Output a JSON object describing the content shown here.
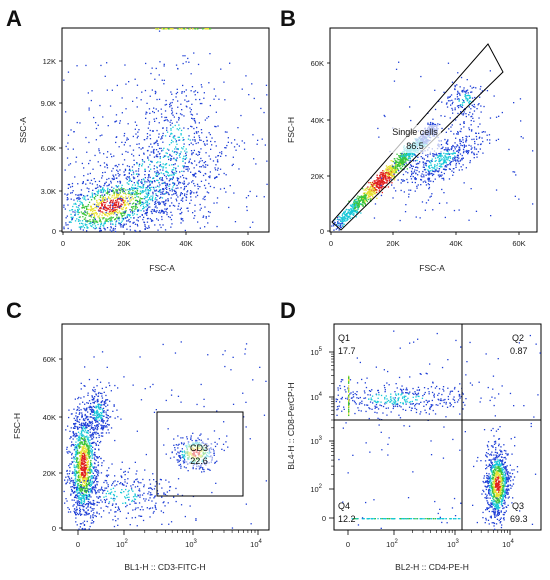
{
  "panels": [
    {
      "id": "A",
      "xlabel": "FSC-A",
      "ylabel": "SSC-A",
      "xticks": [
        "0",
        "20K",
        "40K",
        "60K"
      ],
      "yticks": [
        "0",
        "3.0K",
        "6.0K",
        "9.0K",
        "12K"
      ]
    },
    {
      "id": "B",
      "xlabel": "FSC-A",
      "ylabel": "FSC-H",
      "xticks": [
        "0",
        "20K",
        "40K",
        "60K"
      ],
      "yticks": [
        "0",
        "20K",
        "40K",
        "60K"
      ],
      "gate": {
        "name": "Single cells",
        "value": "86.5"
      }
    },
    {
      "id": "C",
      "xlabel": "BL1-H :: CD3-FITC-H",
      "ylabel": "FSC-H",
      "xticks": [
        "0",
        "10",
        "10",
        "10"
      ],
      "xtick_exp": [
        "",
        "2",
        "3",
        "4"
      ],
      "yticks": [
        "0",
        "20K",
        "40K",
        "60K"
      ],
      "gate": {
        "name": "CD3",
        "value": "22.6"
      }
    },
    {
      "id": "D",
      "xlabel": "BL2-H :: CD4-PE-H",
      "ylabel": "BL4-H :: CD8-PerCP-H",
      "xticks": [
        "0",
        "10",
        "10",
        "10"
      ],
      "xtick_exp": [
        "",
        "2",
        "3",
        "4"
      ],
      "yticks": [
        "0",
        "10",
        "10",
        "10",
        "10"
      ],
      "ytick_exp": [
        "",
        "2",
        "3",
        "4",
        "5"
      ],
      "quadrants": [
        {
          "name": "Q1",
          "value": "17.7"
        },
        {
          "name": "Q2",
          "value": "0.87"
        },
        {
          "name": "Q3",
          "value": "69.3"
        },
        {
          "name": "Q4",
          "value": "12.2"
        }
      ]
    }
  ],
  "chart_data": [
    {
      "panel": "A",
      "type": "scatter",
      "x_axis": "FSC-A",
      "y_axis": "SSC-A",
      "xlim": [
        0,
        65000
      ],
      "ylim": [
        0,
        14000
      ],
      "populations": [
        {
          "center": [
            20000,
            2200
          ],
          "note": "main cell cluster (red)"
        },
        {
          "center": [
            40000,
            5500
          ],
          "note": "secondary diffuse cluster"
        }
      ]
    },
    {
      "panel": "B",
      "type": "scatter",
      "x_axis": "FSC-A",
      "y_axis": "FSC-H",
      "xlim": [
        0,
        65000
      ],
      "ylim": [
        0,
        68000
      ],
      "gates": [
        {
          "name": "Single cells",
          "percent": 86.5
        }
      ]
    },
    {
      "panel": "C",
      "type": "scatter",
      "x_axis": "BL1-H :: CD3-FITC-H",
      "y_axis": "FSC-H",
      "x_scale": "biexponential",
      "ylim": [
        0,
        68000
      ],
      "gates": [
        {
          "name": "CD3",
          "percent": 22.6
        }
      ]
    },
    {
      "panel": "D",
      "type": "scatter",
      "x_axis": "BL2-H :: CD4-PE-H",
      "y_axis": "BL4-H :: CD8-PerCP-H",
      "x_scale": "biexponential",
      "y_scale": "biexponential",
      "quadrants": [
        {
          "name": "Q1",
          "percent": 17.7
        },
        {
          "name": "Q2",
          "percent": 0.87
        },
        {
          "name": "Q3",
          "percent": 69.3
        },
        {
          "name": "Q4",
          "percent": 12.2
        }
      ]
    }
  ],
  "colors": {
    "low": "#1f3fd6",
    "mid": "#18c8d8",
    "green": "#3ac43a",
    "yellow": "#e8e030",
    "high": "#e02020"
  }
}
